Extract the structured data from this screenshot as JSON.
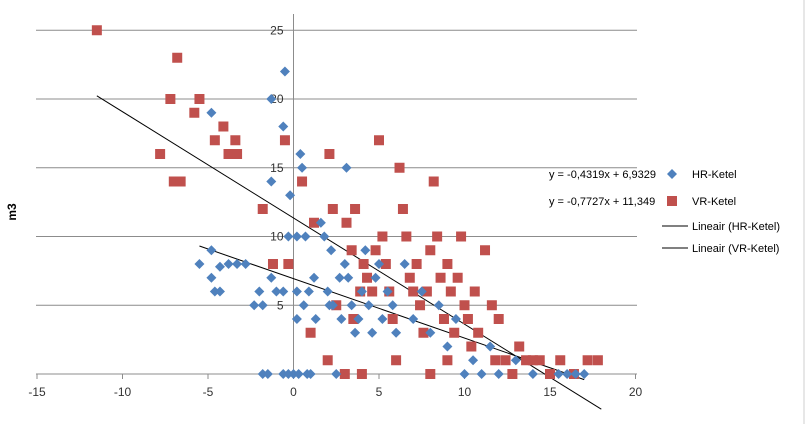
{
  "chart_data": {
    "type": "scatter",
    "title": "",
    "xlabel": "",
    "ylabel": "m3",
    "xlim": [
      -15,
      20
    ],
    "ylim": [
      -2,
      27
    ],
    "grid": true,
    "x_ticks": [
      -15,
      -10,
      -5,
      0,
      5,
      10,
      15,
      20
    ],
    "y_ticks": [
      5,
      10,
      15,
      20,
      25
    ],
    "x_tick_labels": [
      "-15",
      "-10",
      "-5",
      "0",
      "5",
      "10",
      "15",
      "20"
    ],
    "y_tick_labels": [
      "5",
      "10",
      "15",
      "20",
      "25"
    ],
    "legend_position": "right",
    "series": [
      {
        "name": "HR-Ketel",
        "marker": "diamond",
        "color": "#4f81bd",
        "equation": "y = -0,4319x + 6,9329",
        "trend": {
          "slope": -0.4319,
          "intercept": 6.9329,
          "x_range": [
            -5.5,
            17
          ]
        },
        "points": [
          [
            -5.5,
            8
          ],
          [
            -4.8,
            9
          ],
          [
            -4.8,
            19
          ],
          [
            -4.8,
            7
          ],
          [
            -4.6,
            6
          ],
          [
            -4.3,
            6
          ],
          [
            -4.3,
            7.8
          ],
          [
            -3.8,
            8
          ],
          [
            -3.3,
            8
          ],
          [
            -2.8,
            8
          ],
          [
            -2.3,
            5
          ],
          [
            -2,
            6
          ],
          [
            -1.8,
            5
          ],
          [
            -1.8,
            0
          ],
          [
            -1.5,
            0
          ],
          [
            -1.3,
            14
          ],
          [
            -1.3,
            20
          ],
          [
            -1.3,
            7
          ],
          [
            -1.0,
            6
          ],
          [
            -0.6,
            0
          ],
          [
            -0.6,
            18
          ],
          [
            -0.6,
            6
          ],
          [
            -0.3,
            10
          ],
          [
            -0.3,
            0
          ],
          [
            -0.5,
            22
          ],
          [
            -0.2,
            13
          ],
          [
            0,
            0
          ],
          [
            0.2,
            6
          ],
          [
            0.2,
            10
          ],
          [
            0.2,
            4
          ],
          [
            0.3,
            0
          ],
          [
            0.4,
            16
          ],
          [
            0.5,
            15
          ],
          [
            0.6,
            5
          ],
          [
            0.7,
            10
          ],
          [
            0.8,
            0
          ],
          [
            0.9,
            6
          ],
          [
            1,
            0
          ],
          [
            1.2,
            7
          ],
          [
            1.3,
            4
          ],
          [
            1.6,
            11
          ],
          [
            1.8,
            10
          ],
          [
            2,
            6
          ],
          [
            2.1,
            5
          ],
          [
            2.2,
            9
          ],
          [
            2.3,
            5
          ],
          [
            2.5,
            0
          ],
          [
            2.7,
            7
          ],
          [
            2.8,
            4
          ],
          [
            3.0,
            8
          ],
          [
            3.1,
            15
          ],
          [
            3.2,
            7
          ],
          [
            3.4,
            5
          ],
          [
            3.6,
            3
          ],
          [
            3.8,
            4
          ],
          [
            4.0,
            6
          ],
          [
            4.2,
            9
          ],
          [
            4.4,
            5
          ],
          [
            4.6,
            3
          ],
          [
            4.8,
            7
          ],
          [
            5,
            8
          ],
          [
            5.2,
            4
          ],
          [
            5.5,
            6
          ],
          [
            5.8,
            5
          ],
          [
            6,
            3
          ],
          [
            6.5,
            8
          ],
          [
            7,
            4
          ],
          [
            7.5,
            6
          ],
          [
            8,
            3
          ],
          [
            8.5,
            5
          ],
          [
            9,
            2
          ],
          [
            9.5,
            4
          ],
          [
            10,
            0
          ],
          [
            10.5,
            1
          ],
          [
            11,
            0
          ],
          [
            11.5,
            2
          ],
          [
            12,
            0
          ],
          [
            13,
            1
          ],
          [
            14,
            0
          ],
          [
            15.5,
            0
          ],
          [
            16,
            0
          ],
          [
            16.5,
            0
          ],
          [
            17,
            0
          ]
        ]
      },
      {
        "name": "VR-Ketel",
        "marker": "square",
        "color": "#c0504d",
        "equation": "y = -0,7727x + 11,349",
        "trend": {
          "slope": -0.7727,
          "intercept": 11.349,
          "x_range": [
            -11.5,
            18
          ]
        },
        "points": [
          [
            -11.5,
            25
          ],
          [
            -7.8,
            16
          ],
          [
            -7.2,
            20
          ],
          [
            -7,
            14
          ],
          [
            -6.8,
            23
          ],
          [
            -6.6,
            14
          ],
          [
            -5.8,
            19
          ],
          [
            -5.5,
            20
          ],
          [
            -4.6,
            17
          ],
          [
            -4.1,
            18
          ],
          [
            -3.8,
            16
          ],
          [
            -3.3,
            16
          ],
          [
            -3.4,
            17
          ],
          [
            -1.8,
            12
          ],
          [
            -0.5,
            17
          ],
          [
            -0.3,
            8
          ],
          [
            -1.2,
            8
          ],
          [
            0.5,
            14
          ],
          [
            1.2,
            11
          ],
          [
            2.1,
            16
          ],
          [
            2.3,
            12
          ],
          [
            3.1,
            11
          ],
          [
            3.4,
            9
          ],
          [
            3.6,
            12
          ],
          [
            3.9,
            6
          ],
          [
            4.1,
            8
          ],
          [
            4.3,
            7
          ],
          [
            4.6,
            6
          ],
          [
            4.8,
            9
          ],
          [
            5,
            17
          ],
          [
            5.2,
            10
          ],
          [
            5.4,
            8
          ],
          [
            5.6,
            6
          ],
          [
            5.8,
            4
          ],
          [
            6.2,
            15
          ],
          [
            6.4,
            12
          ],
          [
            6.6,
            10
          ],
          [
            6.8,
            7
          ],
          [
            7.0,
            6
          ],
          [
            7.2,
            8
          ],
          [
            7.4,
            5
          ],
          [
            7.6,
            3
          ],
          [
            7.8,
            6
          ],
          [
            8.0,
            9
          ],
          [
            8.2,
            14
          ],
          [
            8.4,
            10
          ],
          [
            8.6,
            7
          ],
          [
            8.8,
            4
          ],
          [
            9.0,
            8
          ],
          [
            9.2,
            6
          ],
          [
            9.4,
            3
          ],
          [
            9.6,
            7
          ],
          [
            9.8,
            10
          ],
          [
            10.0,
            5
          ],
          [
            10.2,
            4
          ],
          [
            10.4,
            2
          ],
          [
            10.6,
            6
          ],
          [
            10.8,
            3
          ],
          [
            11.2,
            9
          ],
          [
            11.6,
            5
          ],
          [
            11.8,
            1
          ],
          [
            12.0,
            4
          ],
          [
            12.4,
            1
          ],
          [
            12.8,
            0
          ],
          [
            13.2,
            2
          ],
          [
            13.6,
            1
          ],
          [
            14.0,
            1
          ],
          [
            14.4,
            1
          ],
          [
            15,
            0
          ],
          [
            15.6,
            1
          ],
          [
            16.4,
            0
          ],
          [
            17.2,
            1
          ],
          [
            17.8,
            1
          ],
          [
            6,
            1
          ],
          [
            8,
            0
          ],
          [
            9,
            1
          ],
          [
            4,
            0
          ],
          [
            3,
            0
          ],
          [
            2,
            1
          ],
          [
            1,
            3
          ],
          [
            2.5,
            5
          ],
          [
            3.5,
            4
          ]
        ]
      }
    ],
    "legend": [
      {
        "label": "HR-Ketel",
        "marker": "diamond",
        "color": "#4f81bd"
      },
      {
        "label": "VR-Ketel",
        "marker": "square",
        "color": "#c0504d"
      },
      {
        "label": "Lineair (HR-Ketel)",
        "marker": "line",
        "color": "#000000"
      },
      {
        "label": "Lineair (VR-Ketel)",
        "marker": "line",
        "color": "#000000"
      }
    ]
  }
}
